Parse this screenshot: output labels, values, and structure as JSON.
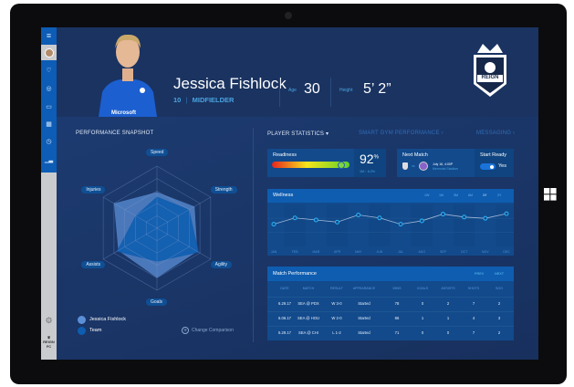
{
  "player": {
    "name": "Jessica Fishlock",
    "number": "10",
    "position": "MIDFIELDER",
    "age_label": "Age",
    "age": "30",
    "height_label": "Height",
    "height": "5’ 2”",
    "shirt_sponsor": "Microsoft"
  },
  "team_logo": {
    "text": "REIGN",
    "sub": "FC"
  },
  "sidebar": {
    "icons": [
      "menu-icon",
      "avatar",
      "heart-icon",
      "target-icon",
      "chat-icon",
      "calendar-icon",
      "stopwatch-icon",
      "chart-icon"
    ],
    "bottom": [
      "gear-icon",
      "reign-logo"
    ]
  },
  "tabs": [
    {
      "label": "PLAYER STATISTICS",
      "active": true
    },
    {
      "label": "SMART GYM PERFORMANCE",
      "active": false
    },
    {
      "label": "MESSAGING",
      "active": false
    }
  ],
  "snapshot": {
    "title": "PERFORMANCE SNAPSHOT",
    "axes": [
      "Speed",
      "Strength",
      "Agility",
      "Goals",
      "Assists",
      "Injuries"
    ],
    "legend": [
      {
        "label": "Jessica Fishlock",
        "color": "#5b8fd6"
      },
      {
        "label": "Team",
        "color": "#0e5db0"
      }
    ],
    "change_label": "Change Comparison"
  },
  "readiness": {
    "title": "Readiness",
    "value": "92",
    "unit": "%",
    "period": "1M",
    "change": "6.2%",
    "level": 0.92
  },
  "next_match": {
    "title": "Next Match",
    "vs": "vs",
    "date": "July 16, 4:00P",
    "venue": "Memorial Stadium",
    "start_ready_label": "Start Ready",
    "start_ready_value": "Yes",
    "start_ready_on": true
  },
  "wellness": {
    "title": "Wellness",
    "ranges": [
      "1W",
      "1M",
      "3M",
      "6M",
      "1Y",
      "2Y"
    ],
    "active_range": "1Y"
  },
  "match_performance": {
    "title": "Match Performance",
    "prev": "PREV",
    "next": "NEXT",
    "columns": [
      "DATE",
      "MATCH",
      "RESULT",
      "APPEARANCE",
      "MINS",
      "GOALS",
      "ASSISTS",
      "SHOTS",
      "SOG"
    ],
    "rows": [
      [
        "6.29.17",
        "SEA @ PDX",
        "W 3-0",
        "Started",
        "78",
        "0",
        "2",
        "7",
        "2"
      ],
      [
        "6.06.17",
        "SEA @ HOU",
        "W 2-0",
        "Started",
        "86",
        "1",
        "1",
        "4",
        "3"
      ],
      [
        "5.29.17",
        "SEA @ CHI",
        "L 1-2",
        "Started",
        "71",
        "0",
        "0",
        "7",
        "2"
      ]
    ]
  },
  "colors": {
    "accent": "#4aa3df",
    "card": "#124a8c",
    "card_header": "#0e5db0",
    "sidebar": "#0d5cb5"
  },
  "chart_data": [
    {
      "type": "radar",
      "axes": [
        "Speed",
        "Strength",
        "Agility",
        "Goals",
        "Assists",
        "Injuries"
      ],
      "range": [
        0,
        1
      ],
      "series": [
        {
          "name": "Jessica Fishlock",
          "values": [
            0.51,
            0.6,
            0.78,
            0.54,
            0.75,
            0.4
          ]
        },
        {
          "name": "Team",
          "values": [
            0.58,
            0.7,
            0.75,
            0.8,
            0.72,
            0.8
          ]
        }
      ]
    },
    {
      "type": "line",
      "title": "Wellness",
      "categories": [
        "JAN",
        "FEB",
        "MAR",
        "APR",
        "MAY",
        "JUN",
        "JUL",
        "AUG",
        "SEP",
        "OCT",
        "NOV",
        "DEC"
      ],
      "values": [
        53,
        68,
        63,
        58,
        75,
        68,
        53,
        61,
        77,
        70,
        67,
        78
      ],
      "ylim": [
        0,
        100
      ],
      "grid": true
    }
  ]
}
